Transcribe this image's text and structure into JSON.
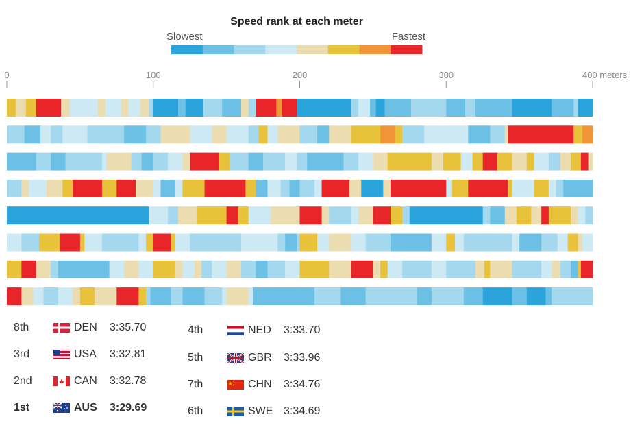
{
  "chart_data": {
    "type": "heatmap",
    "title": "Speed rank at each meter",
    "legend": {
      "low_label": "Slowest",
      "high_label": "Fastest",
      "colors": [
        "#2ba4dc",
        "#6cc0e6",
        "#a4d8ee",
        "#cde9f3",
        "#ecddb0",
        "#e8c23a",
        "#ef9538",
        "#e8262a"
      ]
    },
    "x_axis": {
      "unit": "meters",
      "ticks": [
        0,
        100,
        200,
        300,
        400
      ],
      "tick_labels": [
        "0",
        "100",
        "200",
        "300",
        "400 meters"
      ],
      "range": [
        0,
        400
      ]
    },
    "rank_scale": "1 = slowest, 8 = fastest",
    "rows": [
      {
        "team": "DEN",
        "segments": [
          [
            0,
            6
          ],
          [
            6,
            5
          ],
          [
            13,
            6
          ],
          [
            20,
            8
          ],
          [
            37,
            5
          ],
          [
            43,
            4
          ],
          [
            62,
            5
          ],
          [
            67,
            4
          ],
          [
            78,
            5
          ],
          [
            83,
            4
          ],
          [
            91,
            5
          ],
          [
            97,
            3
          ],
          [
            100,
            1
          ],
          [
            117,
            2
          ],
          [
            122,
            1
          ],
          [
            134,
            3
          ],
          [
            147,
            2
          ],
          [
            160,
            5
          ],
          [
            165,
            3
          ],
          [
            170,
            8
          ],
          [
            184,
            7
          ],
          [
            188,
            8
          ],
          [
            198,
            1
          ],
          [
            235,
            3
          ],
          [
            240,
            4
          ],
          [
            248,
            2
          ],
          [
            252,
            1
          ],
          [
            258,
            2
          ],
          [
            276,
            3
          ],
          [
            300,
            2
          ],
          [
            313,
            3
          ],
          [
            320,
            2
          ],
          [
            345,
            1
          ],
          [
            372,
            2
          ],
          [
            387,
            3
          ],
          [
            390,
            1
          ],
          [
            400,
            null
          ]
        ]
      },
      {
        "team": "USA",
        "segments": [
          [
            0,
            3
          ],
          [
            12,
            2
          ],
          [
            23,
            4
          ],
          [
            30,
            3
          ],
          [
            38,
            4
          ],
          [
            55,
            3
          ],
          [
            70,
            3
          ],
          [
            80,
            2
          ],
          [
            95,
            3
          ],
          [
            105,
            5
          ],
          [
            125,
            4
          ],
          [
            140,
            5
          ],
          [
            150,
            4
          ],
          [
            165,
            3
          ],
          [
            172,
            6
          ],
          [
            178,
            4
          ],
          [
            185,
            5
          ],
          [
            200,
            3
          ],
          [
            212,
            2
          ],
          [
            220,
            5
          ],
          [
            235,
            6
          ],
          [
            255,
            7
          ],
          [
            265,
            6
          ],
          [
            270,
            3
          ],
          [
            285,
            4
          ],
          [
            300,
            4
          ],
          [
            315,
            2
          ],
          [
            330,
            3
          ],
          [
            340,
            5
          ],
          [
            342,
            8
          ],
          [
            387,
            6
          ],
          [
            393,
            7
          ],
          [
            400,
            null
          ]
        ]
      },
      {
        "team": "CAN",
        "segments": [
          [
            0,
            2
          ],
          [
            20,
            3
          ],
          [
            30,
            2
          ],
          [
            40,
            3
          ],
          [
            65,
            4
          ],
          [
            68,
            5
          ],
          [
            85,
            3
          ],
          [
            92,
            2
          ],
          [
            100,
            3
          ],
          [
            110,
            4
          ],
          [
            120,
            5
          ],
          [
            125,
            8
          ],
          [
            145,
            6
          ],
          [
            152,
            3
          ],
          [
            165,
            2
          ],
          [
            175,
            3
          ],
          [
            190,
            4
          ],
          [
            198,
            3
          ],
          [
            205,
            2
          ],
          [
            230,
            3
          ],
          [
            240,
            4
          ],
          [
            250,
            5
          ],
          [
            260,
            6
          ],
          [
            290,
            5
          ],
          [
            298,
            6
          ],
          [
            310,
            4
          ],
          [
            318,
            6
          ],
          [
            325,
            8
          ],
          [
            335,
            6
          ],
          [
            345,
            5
          ],
          [
            355,
            6
          ],
          [
            360,
            4
          ],
          [
            370,
            3
          ],
          [
            378,
            5
          ],
          [
            385,
            6
          ],
          [
            392,
            8
          ],
          [
            397,
            5
          ],
          [
            400,
            null
          ]
        ]
      },
      {
        "team": "NED",
        "segments": [
          [
            0,
            3
          ],
          [
            10,
            5
          ],
          [
            15,
            4
          ],
          [
            27,
            5
          ],
          [
            38,
            6
          ],
          [
            45,
            8
          ],
          [
            65,
            6
          ],
          [
            75,
            8
          ],
          [
            88,
            5
          ],
          [
            100,
            4
          ],
          [
            105,
            2
          ],
          [
            115,
            4
          ],
          [
            120,
            6
          ],
          [
            135,
            8
          ],
          [
            163,
            6
          ],
          [
            170,
            2
          ],
          [
            178,
            4
          ],
          [
            187,
            3
          ],
          [
            193,
            2
          ],
          [
            200,
            3
          ],
          [
            210,
            4
          ],
          [
            215,
            8
          ],
          [
            234,
            5
          ],
          [
            242,
            1
          ],
          [
            257,
            5
          ],
          [
            262,
            8
          ],
          [
            300,
            4
          ],
          [
            304,
            6
          ],
          [
            315,
            8
          ],
          [
            342,
            6
          ],
          [
            345,
            4
          ],
          [
            360,
            6
          ],
          [
            370,
            4
          ],
          [
            375,
            3
          ],
          [
            380,
            2
          ],
          [
            400,
            null
          ]
        ]
      },
      {
        "team": "AUS",
        "segments": [
          [
            0,
            1
          ],
          [
            97,
            4
          ],
          [
            110,
            3
          ],
          [
            117,
            5
          ],
          [
            130,
            6
          ],
          [
            150,
            8
          ],
          [
            158,
            6
          ],
          [
            165,
            4
          ],
          [
            180,
            5
          ],
          [
            200,
            8
          ],
          [
            215,
            5
          ],
          [
            220,
            3
          ],
          [
            235,
            4
          ],
          [
            240,
            5
          ],
          [
            250,
            8
          ],
          [
            262,
            6
          ],
          [
            270,
            3
          ],
          [
            275,
            1
          ],
          [
            325,
            3
          ],
          [
            330,
            2
          ],
          [
            340,
            5
          ],
          [
            348,
            6
          ],
          [
            358,
            5
          ],
          [
            365,
            8
          ],
          [
            370,
            6
          ],
          [
            385,
            5
          ],
          [
            390,
            4
          ],
          [
            395,
            3
          ],
          [
            400,
            null
          ]
        ]
      },
      {
        "team": "GBR",
        "segments": [
          [
            0,
            4
          ],
          [
            10,
            3
          ],
          [
            22,
            6
          ],
          [
            36,
            8
          ],
          [
            50,
            6
          ],
          [
            53,
            4
          ],
          [
            65,
            3
          ],
          [
            90,
            4
          ],
          [
            95,
            6
          ],
          [
            100,
            8
          ],
          [
            112,
            6
          ],
          [
            115,
            4
          ],
          [
            125,
            3
          ],
          [
            160,
            4
          ],
          [
            185,
            3
          ],
          [
            190,
            2
          ],
          [
            198,
            3
          ],
          [
            200,
            6
          ],
          [
            212,
            4
          ],
          [
            220,
            5
          ],
          [
            235,
            4
          ],
          [
            245,
            3
          ],
          [
            262,
            2
          ],
          [
            290,
            4
          ],
          [
            300,
            6
          ],
          [
            306,
            4
          ],
          [
            312,
            3
          ],
          [
            332,
            3
          ],
          [
            345,
            4
          ],
          [
            350,
            2
          ],
          [
            365,
            3
          ],
          [
            376,
            4
          ],
          [
            383,
            6
          ],
          [
            390,
            5
          ],
          [
            393,
            4
          ],
          [
            400,
            null
          ]
        ]
      },
      {
        "team": "CHN",
        "segments": [
          [
            0,
            6
          ],
          [
            10,
            8
          ],
          [
            20,
            5
          ],
          [
            30,
            3
          ],
          [
            35,
            2
          ],
          [
            70,
            4
          ],
          [
            80,
            5
          ],
          [
            90,
            4
          ],
          [
            100,
            6
          ],
          [
            115,
            5
          ],
          [
            120,
            4
          ],
          [
            128,
            5
          ],
          [
            133,
            3
          ],
          [
            140,
            4
          ],
          [
            150,
            5
          ],
          [
            160,
            3
          ],
          [
            170,
            2
          ],
          [
            178,
            3
          ],
          [
            190,
            4
          ],
          [
            200,
            6
          ],
          [
            220,
            5
          ],
          [
            235,
            8
          ],
          [
            250,
            5
          ],
          [
            255,
            6
          ],
          [
            260,
            4
          ],
          [
            270,
            3
          ],
          [
            290,
            4
          ],
          [
            300,
            3
          ],
          [
            320,
            5
          ],
          [
            326,
            6
          ],
          [
            330,
            5
          ],
          [
            345,
            3
          ],
          [
            365,
            4
          ],
          [
            372,
            5
          ],
          [
            378,
            3
          ],
          [
            385,
            2
          ],
          [
            390,
            6
          ],
          [
            392,
            8
          ],
          [
            400,
            null
          ]
        ]
      },
      {
        "team": "SWE",
        "segments": [
          [
            0,
            8
          ],
          [
            10,
            5
          ],
          [
            18,
            4
          ],
          [
            25,
            3
          ],
          [
            35,
            4
          ],
          [
            45,
            5
          ],
          [
            50,
            6
          ],
          [
            60,
            5
          ],
          [
            75,
            8
          ],
          [
            90,
            6
          ],
          [
            95,
            3
          ],
          [
            98,
            2
          ],
          [
            112,
            3
          ],
          [
            120,
            2
          ],
          [
            135,
            3
          ],
          [
            147,
            4
          ],
          [
            150,
            5
          ],
          [
            165,
            4
          ],
          [
            168,
            2
          ],
          [
            200,
            2
          ],
          [
            210,
            3
          ],
          [
            228,
            2
          ],
          [
            245,
            3
          ],
          [
            280,
            2
          ],
          [
            290,
            3
          ],
          [
            312,
            2
          ],
          [
            325,
            1
          ],
          [
            345,
            2
          ],
          [
            355,
            1
          ],
          [
            368,
            2
          ],
          [
            372,
            3
          ],
          [
            400,
            null
          ]
        ]
      }
    ]
  },
  "results": [
    {
      "place": "8th",
      "code": "DEN",
      "time": "3:35.70",
      "bold": false
    },
    {
      "place": "3rd",
      "code": "USA",
      "time": "3:32.81",
      "bold": false
    },
    {
      "place": "2nd",
      "code": "CAN",
      "time": "3:32.78",
      "bold": false
    },
    {
      "place": "1st",
      "code": "AUS",
      "time": "3:29.69",
      "bold": true
    },
    {
      "place": "4th",
      "code": "NED",
      "time": "3:33.70",
      "bold": false
    },
    {
      "place": "5th",
      "code": "GBR",
      "time": "3:33.96",
      "bold": false
    },
    {
      "place": "7th",
      "code": "CHN",
      "time": "3:34.76",
      "bold": false
    },
    {
      "place": "6th",
      "code": "SWE",
      "time": "3:34.69",
      "bold": false
    }
  ]
}
